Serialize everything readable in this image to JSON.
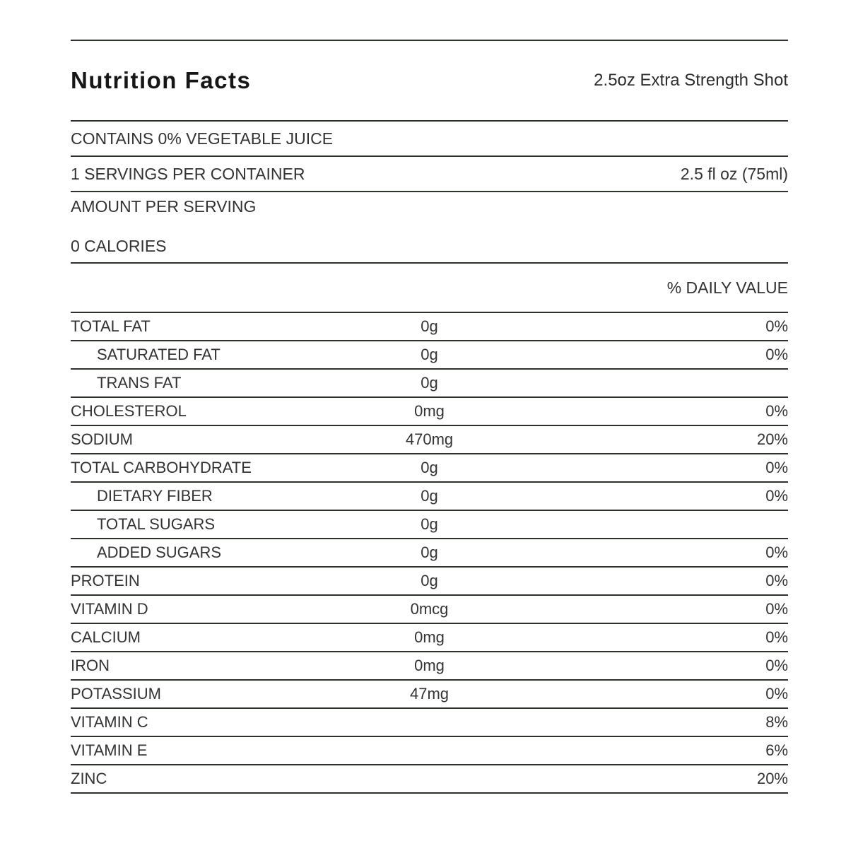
{
  "header": {
    "title": "Nutrition Facts",
    "product": "2.5oz Extra Strength Shot"
  },
  "summary": {
    "contains": "CONTAINS 0% VEGETABLE JUICE",
    "servings_per_container": "1 SERVINGS PER CONTAINER",
    "serving_size": "2.5 fl oz (75ml)",
    "amount_per_serving": "AMOUNT PER SERVING",
    "calories": "0 CALORIES",
    "daily_value_header": "% DAILY VALUE"
  },
  "colors": {
    "rule": "#2e332d",
    "text": "#333333",
    "title": "#161616"
  },
  "nutrients": [
    {
      "name": "TOTAL FAT",
      "amount": "0g",
      "dv": "0%"
    },
    {
      "name": "SATURATED FAT",
      "amount": "0g",
      "dv": "0%"
    },
    {
      "name": "TRANS FAT",
      "amount": "0g",
      "dv": ""
    },
    {
      "name": "CHOLESTEROL",
      "amount": "0mg",
      "dv": "0%"
    },
    {
      "name": "SODIUM",
      "amount": "470mg",
      "dv": "20%"
    },
    {
      "name": "TOTAL CARBOHYDRATE",
      "amount": "0g",
      "dv": "0%"
    },
    {
      "name": "DIETARY FIBER",
      "amount": "0g",
      "dv": "0%"
    },
    {
      "name": "TOTAL SUGARS",
      "amount": "0g",
      "dv": ""
    },
    {
      "name": "ADDED SUGARS",
      "amount": "0g",
      "dv": "0%"
    },
    {
      "name": "PROTEIN",
      "amount": "0g",
      "dv": "0%"
    },
    {
      "name": "VITAMIN D",
      "amount": "0mcg",
      "dv": "0%"
    },
    {
      "name": "CALCIUM",
      "amount": "0mg",
      "dv": "0%"
    },
    {
      "name": "IRON",
      "amount": "0mg",
      "dv": "0%"
    },
    {
      "name": "POTASSIUM",
      "amount": "47mg",
      "dv": "0%"
    },
    {
      "name": "VITAMIN C",
      "amount": "",
      "dv": "8%"
    },
    {
      "name": "VITAMIN E",
      "amount": "",
      "dv": "6%"
    },
    {
      "name": "ZINC",
      "amount": "",
      "dv": "20%"
    }
  ]
}
